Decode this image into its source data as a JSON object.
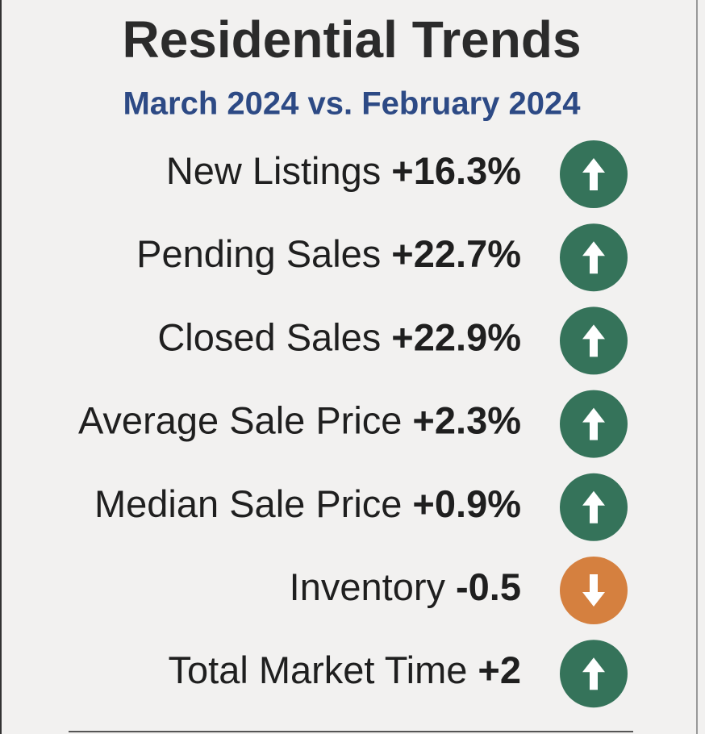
{
  "title": "Residential Trends",
  "subtitle": "March 2024 vs. February 2024",
  "items": [
    {
      "label": "New Listings",
      "value": "+16.3%",
      "direction": "up",
      "color": "#35735a"
    },
    {
      "label": "Pending Sales",
      "value": "+22.7%",
      "direction": "up",
      "color": "#35735a"
    },
    {
      "label": "Closed Sales",
      "value": "+22.9%",
      "direction": "up",
      "color": "#35735a"
    },
    {
      "label": "Average Sale Price",
      "value": "+2.3%",
      "direction": "up",
      "color": "#35735a"
    },
    {
      "label": "Median Sale Price",
      "value": "+0.9%",
      "direction": "up",
      "color": "#35735a"
    },
    {
      "label": "Inventory",
      "value": "-0.5",
      "direction": "down",
      "color": "#d5803f"
    },
    {
      "label": "Total Market Time",
      "value": "+2",
      "direction": "up",
      "color": "#35735a"
    }
  ]
}
